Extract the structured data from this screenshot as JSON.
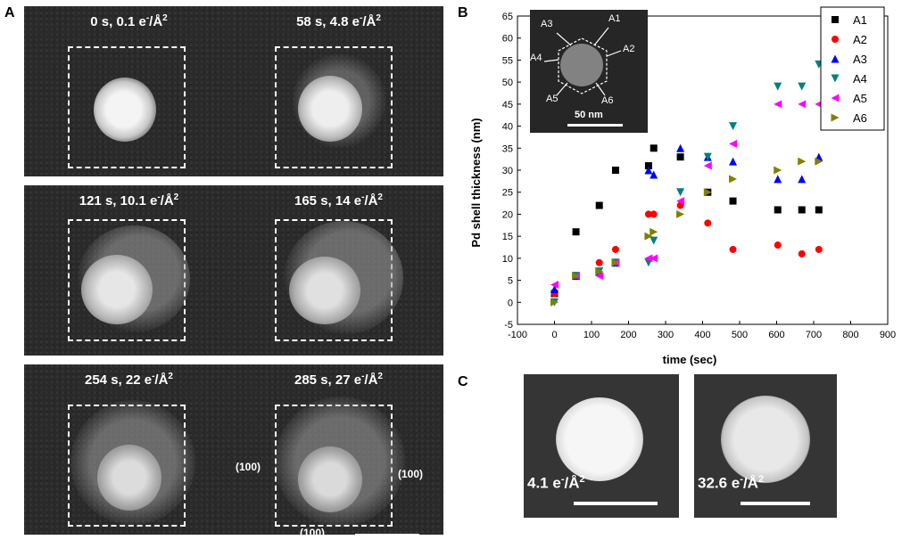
{
  "panels": {
    "a_letter": "A",
    "b_letter": "B",
    "c_letter": "C"
  },
  "panel_a": {
    "frames": [
      {
        "label": "0 s, 0.1 e",
        "exp": "-",
        "unit": "/Å",
        "pow": "2"
      },
      {
        "label": "58 s, 4.8 e",
        "exp": "-",
        "unit": "/Å",
        "pow": "2"
      },
      {
        "label": "121 s, 10.1 e",
        "exp": "-",
        "unit": "/Å",
        "pow": "2"
      },
      {
        "label": "165 s, 14 e",
        "exp": "-",
        "unit": "/Å",
        "pow": "2"
      },
      {
        "label": "254 s, 22 e",
        "exp": "-",
        "unit": "/Å",
        "pow": "2"
      },
      {
        "label": "285 s, 27 e",
        "exp": "-",
        "unit": "/Å",
        "pow": "2"
      }
    ],
    "facet_left": "(100)",
    "facet_right": "(100)",
    "facet_bottom": "(100)"
  },
  "panel_c": {
    "frames": [
      {
        "label": "4.1 e",
        "exp": "-",
        "unit": "/Å",
        "pow": "2"
      },
      {
        "label": "32.6 e",
        "exp": "-",
        "unit": "/Å",
        "pow": "2"
      }
    ]
  },
  "inset": {
    "directions": [
      "A1",
      "A2",
      "A3",
      "A4",
      "A5",
      "A6"
    ],
    "scale_label": "50 nm"
  },
  "chart_data": {
    "type": "scatter",
    "title": "",
    "xlabel": "time (sec)",
    "ylabel": "Pd shell thickness (nm)",
    "xlim": [
      -100,
      900
    ],
    "ylim": [
      -5,
      65
    ],
    "xticks": [
      -100,
      0,
      100,
      200,
      300,
      400,
      500,
      600,
      700,
      800,
      900
    ],
    "yticks": [
      -5,
      0,
      5,
      10,
      15,
      20,
      25,
      30,
      35,
      40,
      45,
      50,
      55,
      60,
      65
    ],
    "legend_position": "top-right",
    "series": [
      {
        "name": "A1",
        "marker": "square",
        "color": "#000000",
        "points": [
          [
            0,
            2
          ],
          [
            58,
            16
          ],
          [
            121,
            22
          ],
          [
            165,
            30
          ],
          [
            254,
            31
          ],
          [
            268,
            35
          ],
          [
            340,
            33
          ],
          [
            414,
            25
          ],
          [
            482,
            23
          ],
          [
            603,
            21
          ],
          [
            668,
            21
          ],
          [
            714,
            21
          ]
        ]
      },
      {
        "name": "A2",
        "marker": "circle",
        "color": "#ff0000",
        "points": [
          [
            0,
            2
          ],
          [
            58,
            6
          ],
          [
            121,
            9
          ],
          [
            165,
            12
          ],
          [
            254,
            20
          ],
          [
            268,
            20
          ],
          [
            340,
            22
          ],
          [
            414,
            18
          ],
          [
            482,
            12
          ],
          [
            603,
            13
          ],
          [
            668,
            11
          ],
          [
            714,
            12
          ]
        ]
      },
      {
        "name": "A3",
        "marker": "triangle-up",
        "color": "#0000ff",
        "points": [
          [
            0,
            3
          ],
          [
            58,
            6
          ],
          [
            121,
            7
          ],
          [
            165,
            9
          ],
          [
            254,
            30
          ],
          [
            268,
            29
          ],
          [
            340,
            35
          ],
          [
            414,
            33
          ],
          [
            482,
            32
          ],
          [
            603,
            28
          ],
          [
            668,
            28
          ],
          [
            714,
            33
          ]
        ]
      },
      {
        "name": "A4",
        "marker": "triangle-down",
        "color": "#008080",
        "points": [
          [
            0,
            0
          ],
          [
            58,
            6
          ],
          [
            121,
            7
          ],
          [
            165,
            9
          ],
          [
            254,
            9
          ],
          [
            268,
            14
          ],
          [
            340,
            25
          ],
          [
            414,
            33
          ],
          [
            482,
            40
          ],
          [
            603,
            49
          ],
          [
            668,
            49
          ],
          [
            714,
            54
          ]
        ]
      },
      {
        "name": "A5",
        "marker": "triangle-left",
        "color": "#ff00ff",
        "points": [
          [
            0,
            4
          ],
          [
            58,
            6
          ],
          [
            121,
            6
          ],
          [
            165,
            9
          ],
          [
            254,
            10
          ],
          [
            268,
            10
          ],
          [
            340,
            23
          ],
          [
            414,
            31
          ],
          [
            482,
            36
          ],
          [
            603,
            45
          ],
          [
            668,
            45
          ],
          [
            714,
            45
          ]
        ]
      },
      {
        "name": "A6",
        "marker": "triangle-right",
        "color": "#808000",
        "points": [
          [
            0,
            0
          ],
          [
            58,
            6
          ],
          [
            121,
            7
          ],
          [
            165,
            9
          ],
          [
            254,
            15
          ],
          [
            268,
            16
          ],
          [
            340,
            20
          ],
          [
            414,
            25
          ],
          [
            482,
            28
          ],
          [
            603,
            30
          ],
          [
            668,
            32
          ],
          [
            714,
            32
          ]
        ]
      }
    ]
  }
}
